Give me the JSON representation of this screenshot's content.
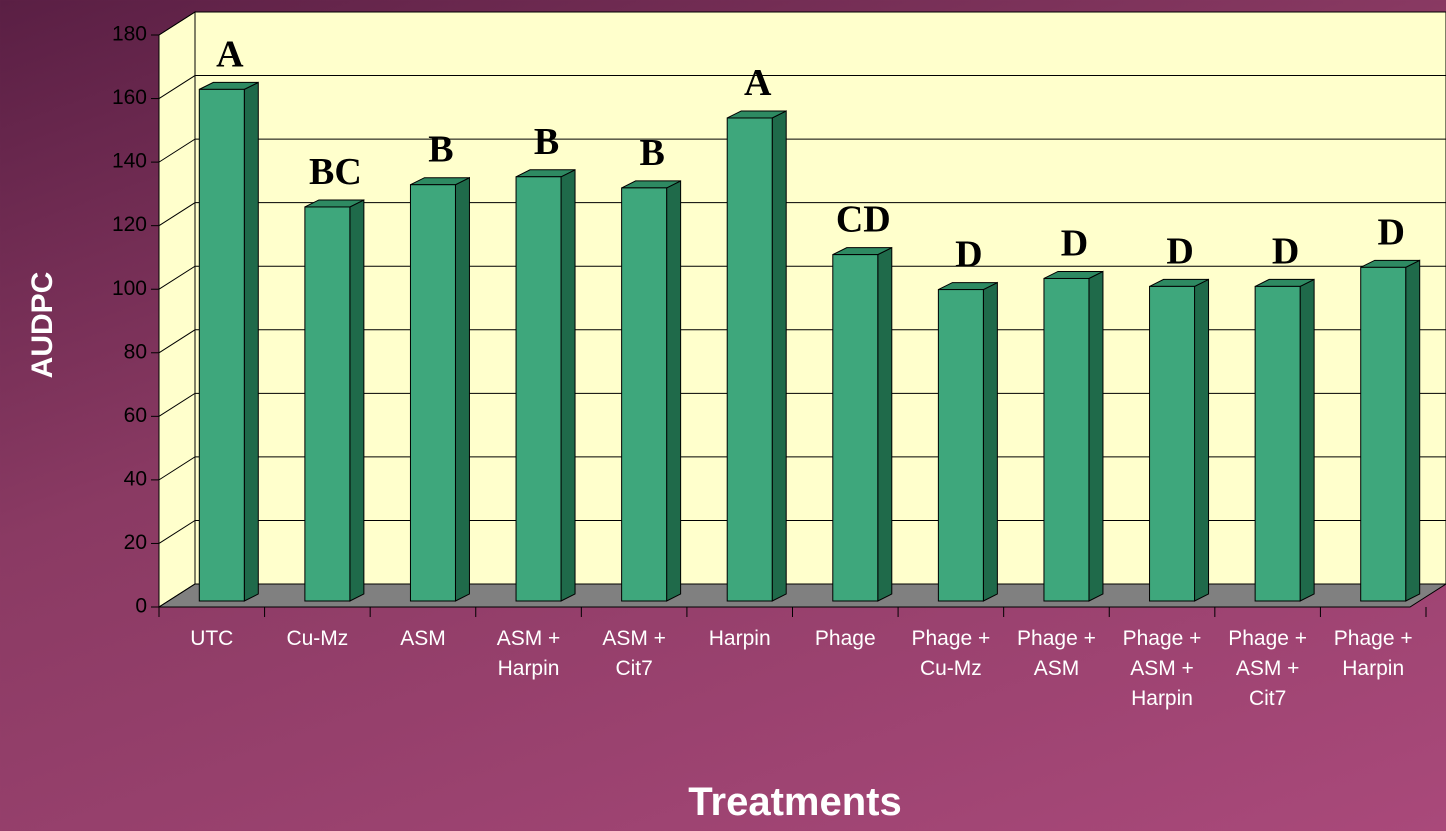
{
  "chart_data": {
    "type": "bar3d",
    "x_label": "Treatments",
    "y_label": "AUDPC",
    "categories": [
      "UTC",
      "Cu-Mz",
      "ASM",
      "ASM + Harpin",
      "ASM + Cit7",
      "Harpin",
      "Phage",
      "Phage + Cu-Mz",
      "Phage + ASM",
      "Phage + ASM + Harpin",
      "Phage + ASM + Cit7",
      "Phage + Harpin"
    ],
    "values": [
      161,
      124,
      131,
      133.5,
      130,
      152,
      109,
      98,
      101.5,
      99,
      99,
      105
    ],
    "annotations": [
      "A",
      "BC",
      "B",
      "B",
      "B",
      "A",
      "CD",
      "D",
      "D",
      "D",
      "D",
      "D"
    ],
    "color": "#3ea77c",
    "ylim": [
      0,
      180
    ],
    "yticks": [
      0,
      20,
      40,
      60,
      80,
      100,
      120,
      140,
      160,
      180
    ],
    "grid": true
  }
}
